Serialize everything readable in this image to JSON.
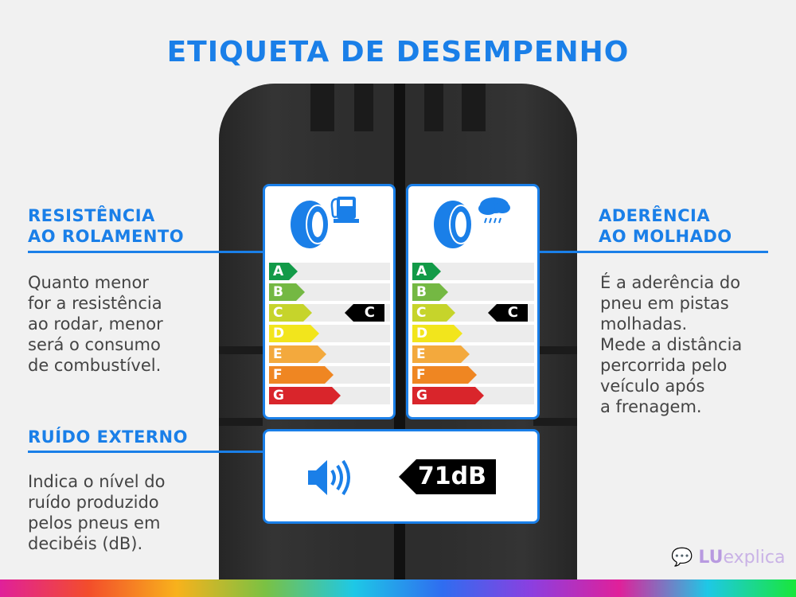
{
  "title": "ETIQUETA DE DESEMPENHO",
  "left": {
    "rolling": {
      "heading": [
        "RESISTÊNCIA",
        "AO ROLAMENTO"
      ],
      "body": [
        "Quanto menor",
        "for a resistência",
        "ao rodar, menor",
        "será o consumo",
        "de combustível."
      ]
    },
    "noise": {
      "heading": "RUÍDO EXTERNO",
      "body": [
        "Indica o nível do",
        "ruído produzido",
        "pelos pneus em",
        "decibéis (dB)."
      ]
    }
  },
  "right": {
    "wet": {
      "heading": [
        "ADERÊNCIA",
        "AO MOLHADO"
      ],
      "body": [
        "É a aderência do",
        "pneu em pistas",
        "molhadas.",
        "Mede a distância",
        "percorrida pelo",
        "veículo após",
        "a frenagem."
      ]
    }
  },
  "labels": {
    "grades": [
      "A",
      "B",
      "C",
      "D",
      "E",
      "F",
      "G"
    ],
    "grade_colors": [
      "#129a48",
      "#74b843",
      "#c6d42b",
      "#f2e51c",
      "#f3a93d",
      "#ef8622",
      "#d9252b"
    ],
    "fuel": {
      "icon": "tire-fuel-pump-icon",
      "rating": "C"
    },
    "wet": {
      "icon": "tire-rain-cloud-icon",
      "rating": "C"
    },
    "noise": {
      "icon": "speaker-icon",
      "value": "71dB"
    }
  },
  "logo": {
    "brand": "LU",
    "suffix": "explica"
  },
  "accent": "#1a7fe8"
}
